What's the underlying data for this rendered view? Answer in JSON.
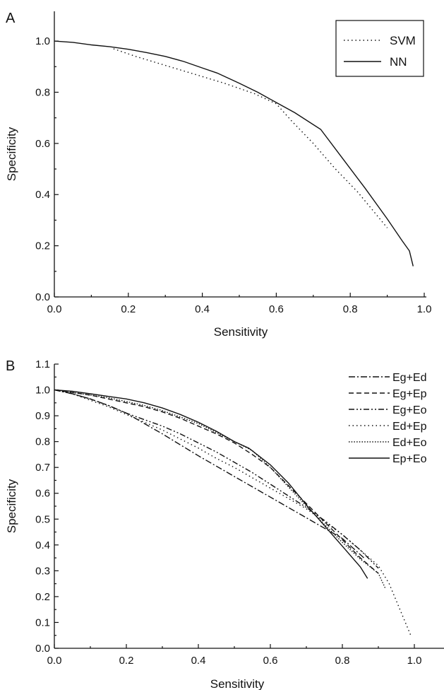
{
  "chart_data": [
    {
      "type": "line",
      "panel_label": "A",
      "xlabel": "Sensitivity",
      "ylabel": "Specificity",
      "xlim": [
        0,
        1.0
      ],
      "ylim": [
        0,
        1.05
      ],
      "x_ticks": [
        "0.0",
        "0.2",
        "0.4",
        "0.6",
        "0.8",
        "1.0"
      ],
      "y_ticks": [
        "0.0",
        "0.2",
        "0.4",
        "0.6",
        "0.8",
        "1.0"
      ],
      "legend_position": "top-right",
      "series": [
        {
          "name": "SVM",
          "dash": "dotted",
          "x": [
            0.16,
            0.22,
            0.3,
            0.38,
            0.46,
            0.54,
            0.6,
            0.64,
            0.7,
            0.76,
            0.82,
            0.9
          ],
          "y": [
            0.97,
            0.94,
            0.905,
            0.87,
            0.835,
            0.795,
            0.755,
            0.69,
            0.6,
            0.5,
            0.41,
            0.27
          ]
        },
        {
          "name": "NN",
          "dash": "solid",
          "x": [
            0.0,
            0.05,
            0.1,
            0.15,
            0.2,
            0.25,
            0.3,
            0.35,
            0.4,
            0.44,
            0.5,
            0.55,
            0.6,
            0.65,
            0.72,
            0.78,
            0.84,
            0.9,
            0.94,
            0.96,
            0.97
          ],
          "y": [
            1.0,
            0.995,
            0.985,
            0.978,
            0.968,
            0.955,
            0.94,
            0.92,
            0.895,
            0.875,
            0.835,
            0.8,
            0.76,
            0.72,
            0.655,
            0.54,
            0.425,
            0.305,
            0.22,
            0.18,
            0.12
          ]
        }
      ]
    },
    {
      "type": "line",
      "panel_label": "B",
      "xlabel": "Sensitivity",
      "ylabel": "Specificity",
      "xlim": [
        0,
        1.1
      ],
      "ylim": [
        0,
        1.1
      ],
      "x_ticks": [
        "0.0",
        "0.2",
        "0.4",
        "0.6",
        "0.8",
        "1.0"
      ],
      "y_ticks": [
        "0.0",
        "0.1",
        "0.2",
        "0.3",
        "0.4",
        "0.5",
        "0.6",
        "0.7",
        "0.8",
        "0.9",
        "1.0",
        "1.1"
      ],
      "legend_position": "top-right",
      "series": [
        {
          "name": "Eg+Ed",
          "dash": "dash-dot",
          "x": [
            0.0,
            0.05,
            0.1,
            0.15,
            0.2,
            0.25,
            0.3,
            0.4,
            0.5,
            0.6,
            0.7,
            0.8,
            0.86
          ],
          "y": [
            1.0,
            0.985,
            0.965,
            0.94,
            0.91,
            0.87,
            0.83,
            0.745,
            0.665,
            0.585,
            0.505,
            0.425,
            0.35
          ]
        },
        {
          "name": "Eg+Ep",
          "dash": "dashed",
          "x": [
            0.0,
            0.05,
            0.1,
            0.15,
            0.2,
            0.25,
            0.3,
            0.35,
            0.4,
            0.45,
            0.5,
            0.55,
            0.6,
            0.65,
            0.7,
            0.75,
            0.8,
            0.85,
            0.9
          ],
          "y": [
            1.0,
            0.99,
            0.98,
            0.965,
            0.95,
            0.935,
            0.915,
            0.89,
            0.86,
            0.83,
            0.795,
            0.75,
            0.7,
            0.63,
            0.56,
            0.49,
            0.42,
            0.35,
            0.29
          ]
        },
        {
          "name": "Eg+Eo",
          "dash": "dash-dot-dot",
          "x": [
            0.0,
            0.05,
            0.1,
            0.15,
            0.2,
            0.25,
            0.3,
            0.35,
            0.4,
            0.45,
            0.5,
            0.55,
            0.6,
            0.65,
            0.7,
            0.75,
            0.8,
            0.85,
            0.9
          ],
          "y": [
            1.0,
            0.985,
            0.965,
            0.94,
            0.91,
            0.885,
            0.86,
            0.83,
            0.795,
            0.76,
            0.72,
            0.68,
            0.635,
            0.59,
            0.545,
            0.495,
            0.44,
            0.38,
            0.31
          ]
        },
        {
          "name": "Ed+Ep",
          "dash": "dotted",
          "x": [
            0.0,
            0.05,
            0.1,
            0.15,
            0.2,
            0.25,
            0.3,
            0.35,
            0.4,
            0.45,
            0.5,
            0.55,
            0.6,
            0.65,
            0.7,
            0.75,
            0.8,
            0.85,
            0.9,
            0.93,
            0.99
          ],
          "y": [
            1.0,
            0.985,
            0.96,
            0.935,
            0.905,
            0.875,
            0.845,
            0.81,
            0.775,
            0.735,
            0.7,
            0.66,
            0.62,
            0.58,
            0.54,
            0.49,
            0.44,
            0.38,
            0.32,
            0.25,
            0.05
          ]
        },
        {
          "name": "Ed+Eo",
          "dash": "dense-dotted",
          "x": [
            0.0,
            0.05,
            0.1,
            0.15,
            0.2,
            0.25,
            0.3,
            0.35,
            0.4,
            0.45,
            0.5,
            0.55,
            0.6,
            0.65,
            0.7,
            0.75,
            0.8,
            0.85,
            0.9,
            0.92
          ],
          "y": [
            1.0,
            0.99,
            0.98,
            0.97,
            0.955,
            0.94,
            0.92,
            0.895,
            0.87,
            0.835,
            0.8,
            0.765,
            0.7,
            0.625,
            0.55,
            0.48,
            0.41,
            0.345,
            0.29,
            0.23
          ]
        },
        {
          "name": "Ep+Eo",
          "dash": "solid",
          "x": [
            0.0,
            0.05,
            0.1,
            0.15,
            0.2,
            0.25,
            0.3,
            0.35,
            0.4,
            0.45,
            0.5,
            0.54,
            0.6,
            0.65,
            0.7,
            0.75,
            0.8,
            0.85,
            0.87
          ],
          "y": [
            1.0,
            0.995,
            0.985,
            0.975,
            0.965,
            0.95,
            0.93,
            0.905,
            0.875,
            0.84,
            0.8,
            0.775,
            0.71,
            0.64,
            0.555,
            0.475,
            0.395,
            0.315,
            0.27
          ]
        }
      ]
    }
  ]
}
